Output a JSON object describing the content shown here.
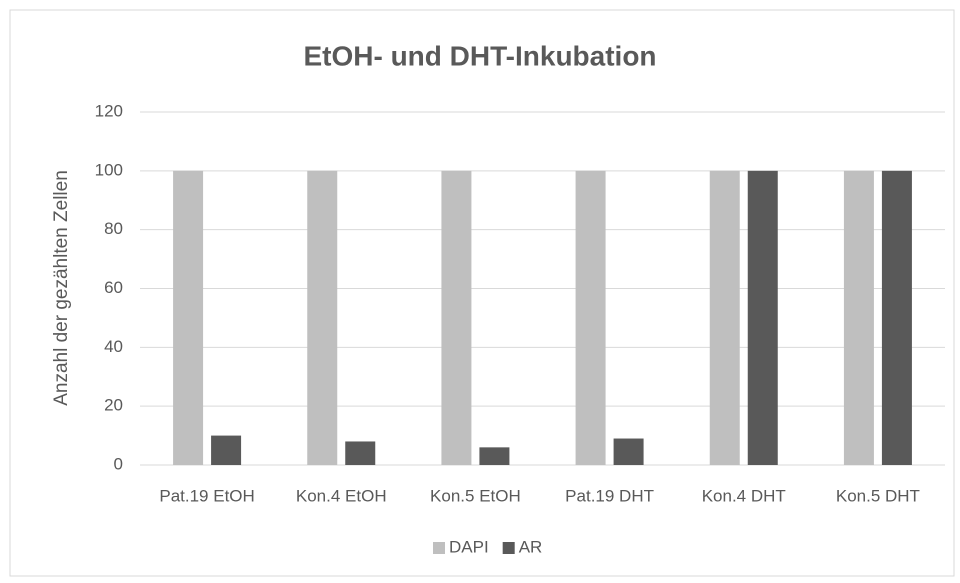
{
  "chart_data": {
    "type": "bar",
    "title": "EtOH- und DHT-Inkubation",
    "y_label": "Anzahl der gezählten Zellen",
    "categories": [
      "Pat.19 EtOH",
      "Kon.4 EtOH",
      "Kon.5 EtOH",
      "Pat.19 DHT",
      "Kon.4 DHT",
      "Kon.5 DHT"
    ],
    "series": [
      {
        "name": "DAPI",
        "color": "#bfbfbf",
        "values": [
          100,
          100,
          100,
          100,
          100,
          100
        ]
      },
      {
        "name": "AR",
        "color": "#595959",
        "values": [
          10,
          8,
          6,
          9,
          100,
          100
        ]
      }
    ],
    "ylim": [
      0,
      120
    ],
    "yticks": [
      0,
      20,
      40,
      60,
      80,
      100,
      120
    ],
    "grid": true,
    "legend": "bottom"
  }
}
